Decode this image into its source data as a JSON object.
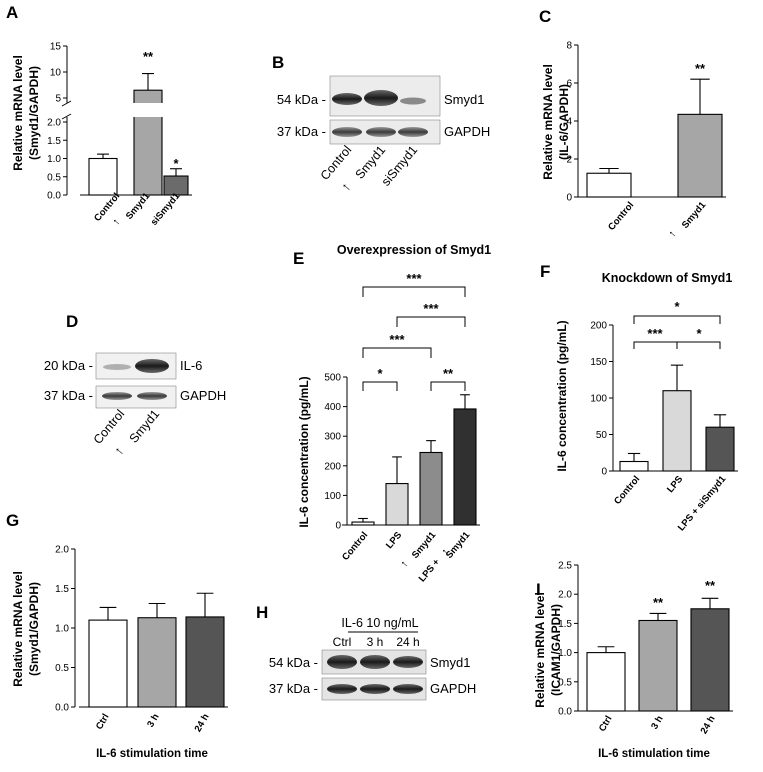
{
  "panels": {
    "A": {
      "letter": "A",
      "ylabel1": "Relative mRNA level",
      "ylabel2": "(Smyd1/GAPDH)",
      "ticks_top": [
        "15",
        "10",
        "5"
      ],
      "ticks_bottom": [
        "2.0",
        "1.5",
        "1.0",
        "0.5",
        "0.0"
      ],
      "cats": [
        "Control",
        "Smyd1",
        "siSmyd1"
      ],
      "stars": [
        "**",
        "*"
      ]
    },
    "B": {
      "letter": "B",
      "kda1": "54 kDa -",
      "kda2": "37 kDa -",
      "band1": "Smyd1",
      "band2": "GAPDH",
      "lanes": [
        "Control",
        "Smyd1",
        "siSmyd1"
      ]
    },
    "C": {
      "letter": "C",
      "ylabel1": "Relative mRNA level",
      "ylabel2": "(IL-6/GAPDH)",
      "ticks": [
        "8",
        "6",
        "4",
        "2",
        "0"
      ],
      "cats": [
        "Control",
        "Smyd1"
      ],
      "stars": [
        "**"
      ]
    },
    "D": {
      "letter": "D",
      "kda1": "20 kDa -",
      "kda2": "37 kDa -",
      "band1": "IL-6",
      "band2": "GAPDH",
      "lanes": [
        "Control",
        "Smyd1"
      ]
    },
    "E": {
      "letter": "E",
      "title": "Overexpression of Smyd1",
      "ylabel": "IL-6 concentration (pg/mL)",
      "ticks": [
        "500",
        "400",
        "300",
        "200",
        "100",
        "0"
      ],
      "cats": [
        "Control",
        "LPS",
        "Smyd1",
        "LPS +",
        "Smyd1"
      ],
      "stars": [
        "***",
        "***",
        "***",
        "*",
        "**"
      ]
    },
    "F": {
      "letter": "F",
      "title": "Knockdown of Smyd1",
      "ylabel": "IL-6 concentration (pg/mL)",
      "ticks": [
        "200",
        "150",
        "100",
        "50",
        "0"
      ],
      "cats": [
        "Control",
        "LPS",
        "LPS + siSmyd1"
      ],
      "stars": [
        "*",
        "***",
        "*"
      ]
    },
    "G": {
      "letter": "G",
      "ylabel1": "Relative mRNA level",
      "ylabel2": "(Smyd1/GAPDH)",
      "xlabel": "IL-6 stimulation time",
      "ticks": [
        "2.0",
        "1.5",
        "1.0",
        "0.5",
        "0.0"
      ],
      "cats": [
        "Ctrl",
        "3 h",
        "24 h"
      ]
    },
    "H": {
      "letter": "H",
      "header": "IL-6 10 ng/mL",
      "lanes": [
        "Ctrl",
        "3 h",
        "24 h"
      ],
      "kda1": "54 kDa -",
      "kda2": "37 kDa -",
      "band1": "Smyd1",
      "band2": "GAPDH"
    },
    "I": {
      "letter": "I",
      "ylabel1": "Relative mRNA level",
      "ylabel2": "(ICAM1/GAPDH)",
      "xlabel": "IL-6 stimulation time",
      "ticks": [
        "2.5",
        "2.0",
        "1.5",
        "1.0",
        "0.5",
        "0.0"
      ],
      "cats": [
        "Ctrl",
        "3 h",
        "24 h"
      ],
      "stars": [
        "**",
        "**"
      ]
    }
  },
  "chart_data": [
    {
      "panel": "A",
      "type": "bar",
      "categories": [
        "Control",
        "Smyd1",
        "siSmyd1"
      ],
      "values": [
        1.0,
        6.5,
        0.52
      ],
      "errors": [
        0.12,
        3.2,
        0.2
      ],
      "ylim": [
        0,
        15
      ],
      "axis_break": true,
      "ylabel": "Relative mRNA level (Smyd1/GAPDH)",
      "colors": [
        "#ffffff",
        "#a6a6a6",
        "#6b6b6b"
      ]
    },
    {
      "panel": "C",
      "type": "bar",
      "categories": [
        "Control",
        "Smyd1"
      ],
      "values": [
        1.25,
        4.35
      ],
      "errors": [
        0.25,
        1.85
      ],
      "ylim": [
        0,
        8
      ],
      "ylabel": "Relative mRNA level (IL-6/GAPDH)",
      "colors": [
        "#ffffff",
        "#a6a6a6"
      ]
    },
    {
      "panel": "E",
      "type": "bar",
      "title": "Overexpression of Smyd1",
      "categories": [
        "Control",
        "LPS",
        "Smyd1",
        "LPS + Smyd1"
      ],
      "values": [
        10,
        140,
        245,
        392
      ],
      "errors": [
        12,
        90,
        40,
        48
      ],
      "ylim": [
        0,
        500
      ],
      "ylabel": "IL-6 concentration (pg/mL)",
      "colors": [
        "#ffffff",
        "#d9d9d9",
        "#8c8c8c",
        "#303030"
      ]
    },
    {
      "panel": "F",
      "type": "bar",
      "title": "Knockdown of Smyd1",
      "categories": [
        "Control",
        "LPS",
        "LPS + siSmyd1"
      ],
      "values": [
        13,
        110,
        60
      ],
      "errors": [
        11,
        35,
        17
      ],
      "ylim": [
        0,
        200
      ],
      "ylabel": "IL-6 concentration (pg/mL)",
      "colors": [
        "#ffffff",
        "#d9d9d9",
        "#555555"
      ]
    },
    {
      "panel": "G",
      "type": "bar",
      "categories": [
        "Ctrl",
        "3 h",
        "24 h"
      ],
      "values": [
        1.1,
        1.13,
        1.14
      ],
      "errors": [
        0.16,
        0.18,
        0.3
      ],
      "ylim": [
        0,
        2.0
      ],
      "ylabel": "Relative mRNA level (Smyd1/GAPDH)",
      "xlabel": "IL-6 stimulation time",
      "colors": [
        "#ffffff",
        "#a6a6a6",
        "#555555"
      ]
    },
    {
      "panel": "I",
      "type": "bar",
      "categories": [
        "Ctrl",
        "3 h",
        "24 h"
      ],
      "values": [
        1.0,
        1.55,
        1.75
      ],
      "errors": [
        0.1,
        0.12,
        0.18
      ],
      "ylim": [
        0,
        2.5
      ],
      "ylabel": "Relative mRNA level (ICAM1/GAPDH)",
      "xlabel": "IL-6 stimulation time",
      "colors": [
        "#ffffff",
        "#a6a6a6",
        "#555555"
      ]
    }
  ]
}
